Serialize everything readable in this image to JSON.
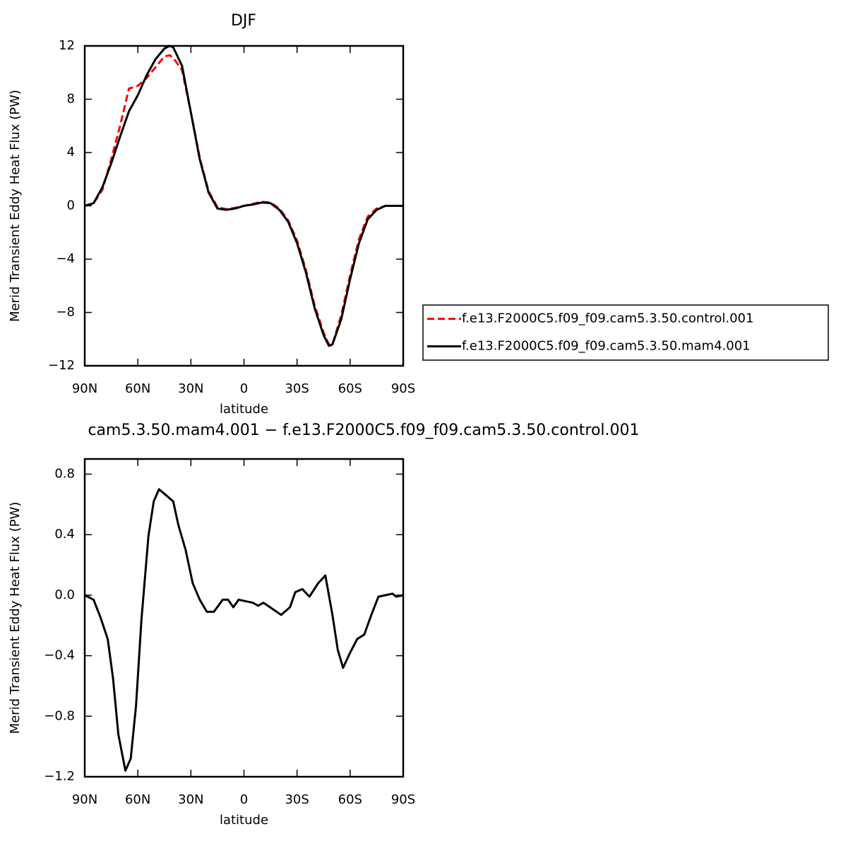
{
  "chart_data": [
    {
      "type": "line",
      "title": "DJF",
      "xlabel": "latitude",
      "ylabel": "Merid Transient Eddy Heat Flux (PW)",
      "x": [
        90,
        85,
        80,
        75,
        70,
        65,
        60,
        55,
        50,
        45,
        42,
        40,
        35,
        30,
        25,
        20,
        15,
        10,
        5,
        0,
        -5,
        -10,
        -15,
        -20,
        -25,
        -30,
        -35,
        -40,
        -45,
        -48,
        -50,
        -55,
        -60,
        -65,
        -70,
        -75,
        -80,
        -85,
        -90
      ],
      "series": [
        {
          "name": "f.e13.F2000C5.f09_f09.cam5.3.50.control.001",
          "color": "#ff0000",
          "dashed": true,
          "values": [
            0,
            0.2,
            1.2,
            3.5,
            6.0,
            8.8,
            9.0,
            9.6,
            10.4,
            11.2,
            11.3,
            11.1,
            10.2,
            7,
            3.6,
            1.1,
            -0.1,
            -0.25,
            -0.15,
            0,
            0.15,
            0.3,
            0.25,
            -0.2,
            -1.1,
            -2.6,
            -4.8,
            -7.5,
            -9.5,
            -10.4,
            -10.4,
            -8.2,
            -5.2,
            -2.5,
            -0.8,
            -0.2,
            0,
            0,
            0
          ]
        },
        {
          "name": "f.e13.F2000C5.f09_f09.cam5.3.50.mam4.001",
          "color": "#000000",
          "dashed": false,
          "values": [
            0,
            0.2,
            1.4,
            3.2,
            5.2,
            7.1,
            8.3,
            9.8,
            11,
            11.8,
            12,
            11.9,
            10.5,
            7,
            3.5,
            1.0,
            -0.2,
            -0.3,
            -0.2,
            0,
            0.1,
            0.25,
            0.2,
            -0.3,
            -1.2,
            -2.8,
            -5,
            -7.7,
            -9.7,
            -10.5,
            -10.4,
            -8.5,
            -5.5,
            -2.8,
            -1.0,
            -0.3,
            0,
            0,
            0
          ]
        }
      ],
      "xlim": [
        90,
        -90
      ],
      "xticks": [
        {
          "value": 90,
          "label": "90N"
        },
        {
          "value": 60,
          "label": "60N"
        },
        {
          "value": 30,
          "label": "30N"
        },
        0,
        {
          "value": -30,
          "label": "30S"
        },
        {
          "value": -60,
          "label": "60S"
        },
        {
          "value": -90,
          "label": "90S"
        }
      ],
      "ylim": [
        -12,
        12
      ],
      "yticks": [
        {
          "value": -12,
          "label": "−12"
        },
        {
          "value": -8,
          "label": "−8"
        },
        {
          "value": -4,
          "label": "−4"
        },
        0,
        4,
        8,
        12
      ],
      "legend": "right"
    },
    {
      "type": "line",
      "title": "cam5.3.50.mam4.001 − f.e13.F2000C5.f09_f09.cam5.3.50.control.001",
      "xlabel": "latitude",
      "ylabel": "Merid Transient Eddy Heat Flux (PW)",
      "x": [
        90,
        85,
        81,
        77,
        74,
        71,
        67,
        64,
        61,
        58,
        54,
        51,
        48,
        44,
        40,
        37,
        33,
        29,
        25,
        21,
        17,
        12,
        9,
        6,
        3,
        -1,
        -5,
        -8,
        -11,
        -16,
        -21,
        -26,
        -29,
        -33,
        -37,
        -42,
        -46,
        -50,
        -53,
        -56,
        -60,
        -64,
        -68,
        -72,
        -76,
        -80,
        -84,
        -86,
        -90
      ],
      "values": [
        0,
        -0.03,
        -0.15,
        -0.29,
        -0.55,
        -0.92,
        -1.16,
        -1.08,
        -0.73,
        -0.17,
        0.39,
        0.62,
        0.7,
        0.66,
        0.62,
        0.46,
        0.3,
        0.08,
        -0.03,
        -0.11,
        -0.11,
        -0.03,
        -0.03,
        -0.08,
        -0.03,
        -0.04,
        -0.05,
        -0.07,
        -0.05,
        -0.09,
        -0.13,
        -0.08,
        0.02,
        0.04,
        -0.01,
        0.08,
        0.13,
        -0.13,
        -0.36,
        -0.48,
        -0.38,
        -0.29,
        -0.26,
        -0.13,
        -0.01,
        0,
        0.01,
        -0.01,
        0
      ],
      "color": "#000000",
      "xlim": [
        90,
        -90
      ],
      "xticks": [
        {
          "value": 90,
          "label": "90N"
        },
        {
          "value": 60,
          "label": "60N"
        },
        {
          "value": 30,
          "label": "30N"
        },
        0,
        {
          "value": -30,
          "label": "30S"
        },
        {
          "value": -60,
          "label": "60S"
        },
        {
          "value": -90,
          "label": "90S"
        }
      ],
      "ylim": [
        -1.2,
        0.9
      ],
      "yticks": [
        {
          "value": -1.2,
          "label": "−1.2"
        },
        {
          "value": -0.8,
          "label": "−0.8"
        },
        {
          "value": -0.4,
          "label": "−0.4"
        },
        {
          "value": 0,
          "label": "0.0"
        },
        0.4,
        0.8
      ]
    }
  ]
}
